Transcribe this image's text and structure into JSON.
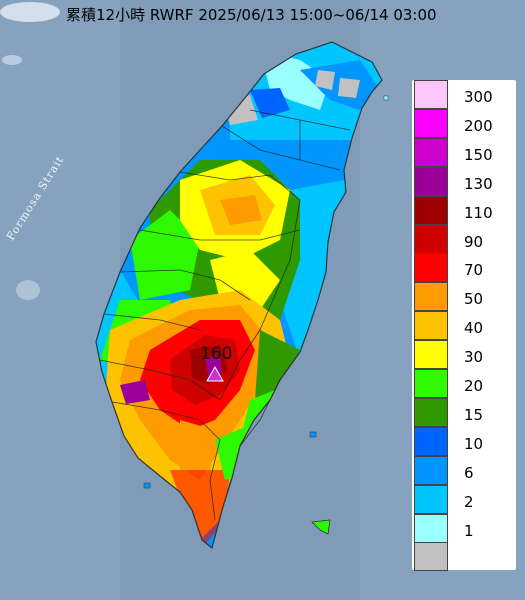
{
  "title": "累積12小時 RWRF 2025/06/13 15:00~06/14 03:00",
  "strait_label": "Formosa Strait",
  "peak": {
    "value": "160",
    "marker": "triangle-marker",
    "color": "#cc33cc"
  },
  "legend": [
    {
      "label": "300",
      "color": "#fdc7fb"
    },
    {
      "label": "200",
      "color": "#fb00fd"
    },
    {
      "label": "150",
      "color": "#cd00cd"
    },
    {
      "label": "130",
      "color": "#9a0099"
    },
    {
      "label": "110",
      "color": "#9e0000"
    },
    {
      "label": "90",
      "color": "#ce0000"
    },
    {
      "label": "70",
      "color": "#ff0000"
    },
    {
      "label": "50",
      "color": "#fe9b00"
    },
    {
      "label": "40",
      "color": "#fdc300"
    },
    {
      "label": "30",
      "color": "#ffff00"
    },
    {
      "label": "20",
      "color": "#2ff900"
    },
    {
      "label": "15",
      "color": "#2f9a00"
    },
    {
      "label": "10",
      "color": "#0064fe"
    },
    {
      "label": "6",
      "color": "#0096fd"
    },
    {
      "label": "2",
      "color": "#01c5ff"
    },
    {
      "label": "1",
      "color": "#9affff"
    },
    {
      "label": "",
      "color": "#c1c1c1"
    }
  ]
}
